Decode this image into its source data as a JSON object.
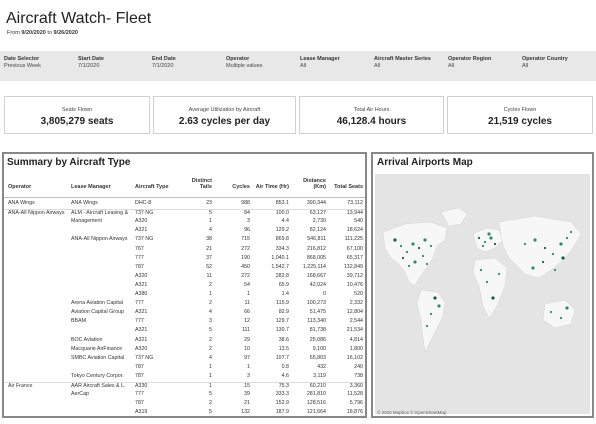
{
  "header": {
    "title": "Aircraft Watch- Fleet",
    "range_prefix": "From",
    "start": "9/20/2020",
    "range_sep": "to",
    "end": "9/26/2020"
  },
  "filters": [
    {
      "label": "Date Selector",
      "value": "Previous Week"
    },
    {
      "label": "Start Date",
      "value": "7/1/2020"
    },
    {
      "label": "End Date",
      "value": "7/1/2020"
    },
    {
      "label": "Operator",
      "value": "Multiple values"
    },
    {
      "label": "Lease Manager",
      "value": "All"
    },
    {
      "label": "Aircraft Master Series",
      "value": "All"
    },
    {
      "label": "Operator Region",
      "value": "All"
    },
    {
      "label": "Operator Country",
      "value": "All"
    }
  ],
  "kpis": [
    {
      "label": "Seats Flown",
      "value": "3,805,279 seats"
    },
    {
      "label": "Average Utilization by Aircraft",
      "value": "2.63 cycles per day"
    },
    {
      "label": "Total Air Hours",
      "value": "46,128.4 hours"
    },
    {
      "label": "Cycles Flown",
      "value": "21,519 cycles"
    }
  ],
  "summary": {
    "title": "Summary by Aircraft Type",
    "columns": [
      "Operator",
      "Lease Manager",
      "Aircraft Type",
      "Distinct Tails",
      "Cycles",
      "Air Time (Hr)",
      "Distance (Km)",
      "Total Seats"
    ],
    "rows": [
      [
        "ANA Wings",
        "ANA Wings",
        "DHC-8",
        "23",
        "988",
        "853.1",
        "390,344",
        "73,112"
      ],
      [
        "ANA-All Nippon Airways",
        "ALM - Aircraft Leasing &",
        "737 NG",
        "5",
        "84",
        "100.0",
        "63,127",
        "13,944"
      ],
      [
        "",
        "Management",
        "A320",
        "1",
        "3",
        "4.4",
        "2,730",
        "540"
      ],
      [
        "",
        "",
        "A321",
        "4",
        "96",
        "129.2",
        "82,124",
        "18,624"
      ],
      [
        "",
        "ANA-All Nippon Airways",
        "737 NG",
        "38",
        "715",
        "869.8",
        "546,811",
        "111,225"
      ],
      [
        "",
        "",
        "767",
        "21",
        "272",
        "334.3",
        "216,812",
        "67,100"
      ],
      [
        "",
        "",
        "777",
        "37",
        "190",
        "1,040.1",
        "868,005",
        "65,317"
      ],
      [
        "",
        "",
        "787",
        "52",
        "450",
        "1,542.7",
        "1,225,114",
        "132,849"
      ],
      [
        "",
        "",
        "A320",
        "11",
        "272",
        "282.8",
        "168,667",
        "39,712"
      ],
      [
        "",
        "",
        "A321",
        "2",
        "54",
        "65.9",
        "42,024",
        "10,476"
      ],
      [
        "",
        "",
        "A380",
        "1",
        "1",
        "1.4",
        "0",
        "520"
      ],
      [
        "",
        "Arena Aviation Capital",
        "777",
        "2",
        "11",
        "115.9",
        "100,273",
        "2,332"
      ],
      [
        "",
        "Aviation Capital Group",
        "A321",
        "4",
        "66",
        "82.9",
        "51,475",
        "12,804"
      ],
      [
        "",
        "BBAM",
        "777",
        "3",
        "12",
        "129.7",
        "113,340",
        "2,544"
      ],
      [
        "",
        "",
        "A321",
        "5",
        "111",
        "130.7",
        "81,738",
        "21,534"
      ],
      [
        "",
        "BOC Aviation",
        "A321",
        "2",
        "29",
        "38.6",
        "25,086",
        "4,814"
      ],
      [
        "",
        "Macquarie AirFinance",
        "A320",
        "2",
        "10",
        "13.5",
        "9,100",
        "1,800"
      ],
      [
        "",
        "SMBC Aviation Capital",
        "737 NG",
        "4",
        "97",
        "107.7",
        "65,803",
        "16,102"
      ],
      [
        "",
        "",
        "787",
        "1",
        "1",
        "0.8",
        "432",
        "240"
      ],
      [
        "",
        "Tokyo Century Corpor.",
        "787",
        "1",
        "3",
        "4.6",
        "3,119",
        "738"
      ],
      [
        "Air France",
        "AAR Aircraft Sales & L.",
        "A330",
        "1",
        "15",
        "75.3",
        "60,210",
        "3,360"
      ],
      [
        "",
        "AerCap",
        "777",
        "5",
        "39",
        "333.3",
        "281,810",
        "11,528"
      ],
      [
        "",
        "",
        "787",
        "2",
        "21",
        "152.9",
        "128,516",
        "5,796"
      ],
      [
        "",
        "",
        "A319",
        "5",
        "132",
        "187.9",
        "121,664",
        "18,876"
      ]
    ]
  },
  "map": {
    "title": "Arrival Airports Map",
    "attribution": "© 2020 Mapbox © OpenStreetMap",
    "land_color": "#f7f7f7",
    "water_color": "#e4e4e4",
    "marker_color": "#2e8b74",
    "marker_dark": "#1b5a4a"
  }
}
